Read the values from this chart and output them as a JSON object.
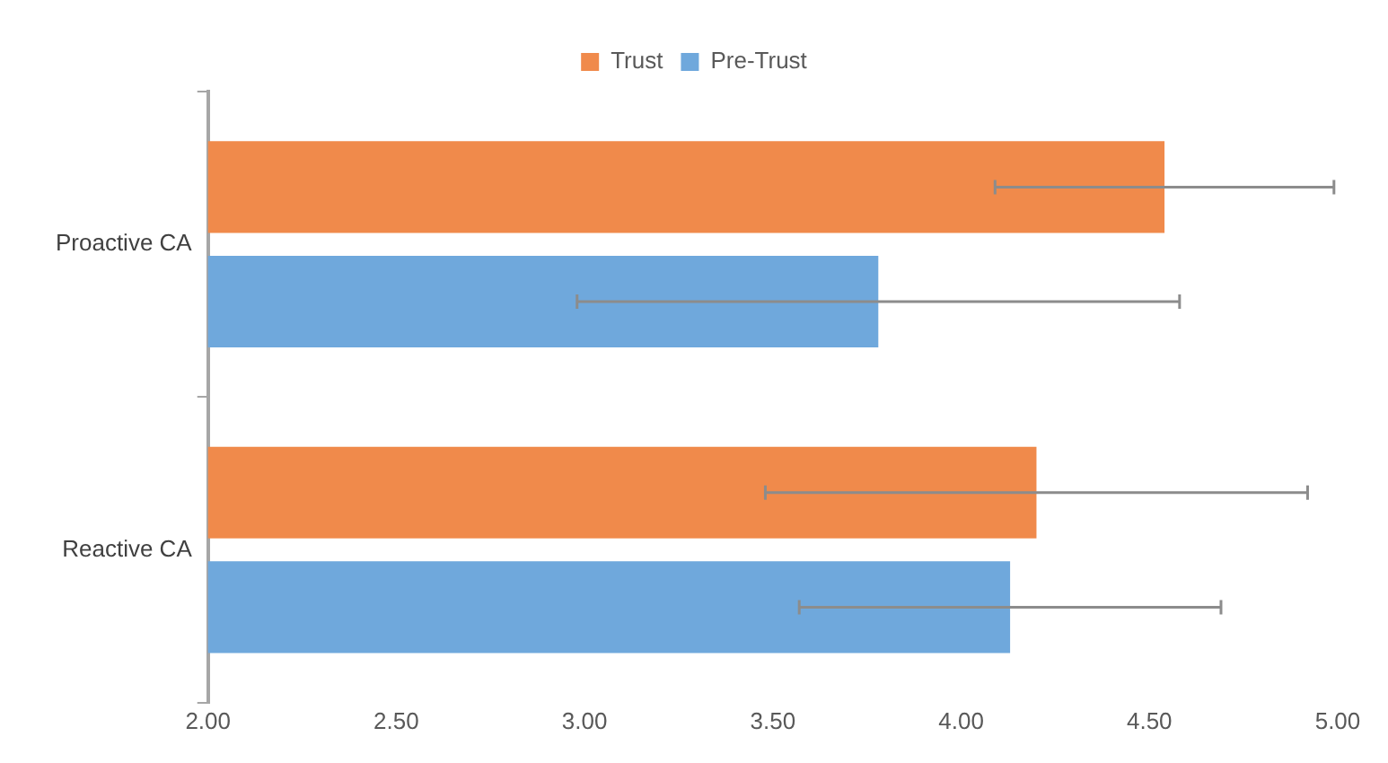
{
  "chart_data": {
    "type": "bar",
    "orientation": "horizontal",
    "categories": [
      "Proactive CA",
      "Reactive CA"
    ],
    "series": [
      {
        "name": "Trust",
        "color": "#f08a4b",
        "values": [
          4.54,
          4.2
        ],
        "errors": [
          0.45,
          0.72
        ]
      },
      {
        "name": "Pre-Trust",
        "color": "#6fa8dc",
        "values": [
          3.78,
          4.13
        ],
        "errors": [
          0.8,
          0.56
        ]
      }
    ],
    "xlim": [
      2,
      5
    ],
    "xticks": [
      {
        "value": 2,
        "label": "2.00"
      },
      {
        "value": 2.5,
        "label": "2.50"
      },
      {
        "value": 3,
        "label": "3.00"
      },
      {
        "value": 3.5,
        "label": "3.50"
      },
      {
        "value": 4,
        "label": "4.00"
      },
      {
        "value": 4.5,
        "label": "4.50"
      },
      {
        "value": 5,
        "label": "5.00"
      }
    ],
    "grid": false,
    "legend": "top"
  }
}
